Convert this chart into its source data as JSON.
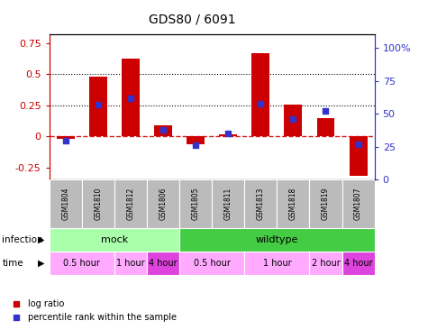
{
  "title": "GDS80 / 6091",
  "samples": [
    "GSM1804",
    "GSM1810",
    "GSM1812",
    "GSM1806",
    "GSM1805",
    "GSM1811",
    "GSM1813",
    "GSM1818",
    "GSM1819",
    "GSM1807"
  ],
  "log_ratio": [
    -0.02,
    0.48,
    0.63,
    0.09,
    -0.06,
    0.02,
    0.67,
    0.26,
    0.15,
    -0.32
  ],
  "percentile_rank": [
    30,
    57,
    62,
    38,
    26,
    35,
    58,
    46,
    52,
    27
  ],
  "ylim_left": [
    -0.35,
    0.82
  ],
  "ylim_right": [
    0,
    110
  ],
  "yticks_left": [
    -0.25,
    0,
    0.25,
    0.5,
    0.75
  ],
  "yticks_right": [
    0,
    25,
    50,
    75,
    100
  ],
  "hlines": [
    0.25,
    0.5
  ],
  "bar_color": "#cc0000",
  "dot_color": "#3333cc",
  "zero_line_color": "#cc0000",
  "infection_groups": [
    {
      "label": "mock",
      "start": 0,
      "end": 4,
      "color": "#aaffaa"
    },
    {
      "label": "wildtype",
      "start": 4,
      "end": 10,
      "color": "#44cc44"
    }
  ],
  "time_groups": [
    {
      "label": "0.5 hour",
      "start": 0,
      "end": 2,
      "color": "#ffaaff"
    },
    {
      "label": "1 hour",
      "start": 2,
      "end": 3,
      "color": "#ffaaff"
    },
    {
      "label": "4 hour",
      "start": 3,
      "end": 4,
      "color": "#dd44dd"
    },
    {
      "label": "0.5 hour",
      "start": 4,
      "end": 6,
      "color": "#ffaaff"
    },
    {
      "label": "1 hour",
      "start": 6,
      "end": 8,
      "color": "#ffaaff"
    },
    {
      "label": "2 hour",
      "start": 8,
      "end": 9,
      "color": "#ffaaff"
    },
    {
      "label": "4 hour",
      "start": 9,
      "end": 10,
      "color": "#dd44dd"
    }
  ],
  "gsm_row_color": "#bbbbbb",
  "left_axis_color": "#cc0000",
  "right_axis_color": "#3333cc"
}
